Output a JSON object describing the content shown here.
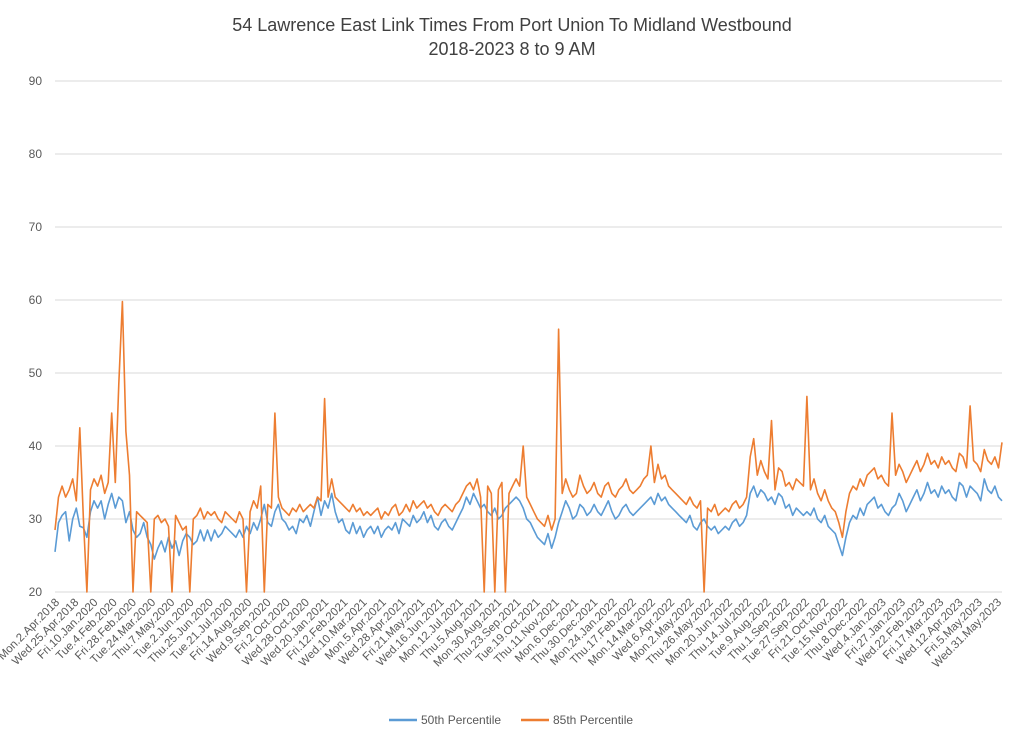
{
  "chart_data": {
    "type": "line",
    "title_line1": "54 Lawrence East Link Times From Port Union To Midland Westbound",
    "title_line2": "2018-2023 8 to 9 AM",
    "xlabel": "",
    "ylabel": "",
    "ylim": [
      20,
      90
    ],
    "yticks": [
      20,
      30,
      40,
      50,
      60,
      70,
      80,
      90
    ],
    "grid": true,
    "legend_position": "bottom",
    "x_tick_labels": [
      "Mon.2.Apr.2018",
      "Wed.25.Apr.2018",
      "Fri.10.Jan.2020",
      "Tue.4.Feb.2020",
      "Fri.28.Feb.2020",
      "Tue.24.Mar.2020",
      "Thu.7.May.2020",
      "Tue.2.Jun.2020",
      "Thu.25.Jun.2020",
      "Tue.21.Jul.2020",
      "Fri.14.Aug.2020",
      "Wed.9.Sep.2020",
      "Fri.2.Oct.2020",
      "Wed.28.Oct.2020",
      "Wed.20.Jan.2021",
      "Fri.12.Feb.2021",
      "Wed.10.Mar.2021",
      "Mon.5.Apr.2021",
      "Wed.28.Apr.2021",
      "Fri.21.May.2021",
      "Wed.16.Jun.2021",
      "Mon.12.Jul.2021",
      "Thu.5.Aug.2021",
      "Mon.30.Aug.2021",
      "Thu.23.Sep.2021",
      "Tue.19.Oct.2021",
      "Thu.11.Nov.2021",
      "Mon.6.Dec.2021",
      "Thu.30.Dec.2021",
      "Mon.24.Jan.2022",
      "Thu.17.Feb.2022",
      "Mon.14.Mar.2022",
      "Wed.6.Apr.2022",
      "Mon.2.May.2022",
      "Thu.26.May.2022",
      "Mon.20.Jun.2022",
      "Thu.14.Jul.2022",
      "Tue.9.Aug.2022",
      "Thu.1.Sep.2022",
      "Tue.27.Sep.2022",
      "Fri.21.Oct.2022",
      "Tue.15.Nov.2022",
      "Thu.8.Dec.2022",
      "Wed.4.Jan.2023",
      "Fri.27.Jan.2023",
      "Wed.22.Feb.2023",
      "Fri.17.Mar.2023",
      "Wed.12.Apr.2023",
      "Fri.5.May.2023",
      "Wed.31.May.2023"
    ],
    "series": [
      {
        "name": "50th Percentile",
        "color": "#5B9BD5",
        "values": [
          25.5,
          29.5,
          30.5,
          31.0,
          27.0,
          30.0,
          31.5,
          29.0,
          28.8,
          27.5,
          31.0,
          32.5,
          31.5,
          32.5,
          30.0,
          32.0,
          33.5,
          31.5,
          33.0,
          32.5,
          29.5,
          31.0,
          28.5,
          27.5,
          28.0,
          29.5,
          27.5,
          26.5,
          24.5,
          26.0,
          27.0,
          25.5,
          27.5,
          26.0,
          27.0,
          25.0,
          27.0,
          28.0,
          27.5,
          26.5,
          27.0,
          28.5,
          27.0,
          28.5,
          27.0,
          28.5,
          27.5,
          28.0,
          29.0,
          28.5,
          28.0,
          27.5,
          28.5,
          27.5,
          29.0,
          28.0,
          29.5,
          28.5,
          30.0,
          32.0,
          29.5,
          29.0,
          31.0,
          32.0,
          30.0,
          29.5,
          28.5,
          29.0,
          28.0,
          30.0,
          29.5,
          30.5,
          29.0,
          31.0,
          33.0,
          30.5,
          32.5,
          31.5,
          33.5,
          31.0,
          29.5,
          30.0,
          28.5,
          28.0,
          29.5,
          28.0,
          29.0,
          27.5,
          28.5,
          29.0,
          28.0,
          29.0,
          27.5,
          28.5,
          29.0,
          28.5,
          29.5,
          28.0,
          30.0,
          29.5,
          29.0,
          30.5,
          29.5,
          30.0,
          31.0,
          29.5,
          30.5,
          29.0,
          28.5,
          29.5,
          30.0,
          29.0,
          28.5,
          29.5,
          30.5,
          31.5,
          33.0,
          32.0,
          33.5,
          32.5,
          31.5,
          32.0,
          31.0,
          30.5,
          31.5,
          30.0,
          30.5,
          31.5,
          32.0,
          32.5,
          33.0,
          32.5,
          31.5,
          30.0,
          29.5,
          28.5,
          27.5,
          27.0,
          26.5,
          28.0,
          26.0,
          27.5,
          29.5,
          31.0,
          32.5,
          31.5,
          30.0,
          30.5,
          32.0,
          31.5,
          30.5,
          31.0,
          32.0,
          31.0,
          30.5,
          31.5,
          32.5,
          31.0,
          30.0,
          30.5,
          31.5,
          32.0,
          31.0,
          30.5,
          31.0,
          31.5,
          32.0,
          32.5,
          33.0,
          32.0,
          33.5,
          32.5,
          33.0,
          32.0,
          31.5,
          31.0,
          30.5,
          30.0,
          29.5,
          30.5,
          29.0,
          28.5,
          29.5,
          30.0,
          29.0,
          28.5,
          29.0,
          28.0,
          28.5,
          29.0,
          28.5,
          29.5,
          30.0,
          29.0,
          29.5,
          30.5,
          33.5,
          34.5,
          33.0,
          34.0,
          33.5,
          32.5,
          33.0,
          32.0,
          33.5,
          33.0,
          31.5,
          32.0,
          30.5,
          31.5,
          31.0,
          30.5,
          31.0,
          30.5,
          31.5,
          30.0,
          29.5,
          30.5,
          29.0,
          28.5,
          28.0,
          26.5,
          25.0,
          27.5,
          29.5,
          30.5,
          30.0,
          31.5,
          30.5,
          32.0,
          32.5,
          33.0,
          31.5,
          32.0,
          31.0,
          30.5,
          31.5,
          32.0,
          33.5,
          32.5,
          31.0,
          32.0,
          33.0,
          34.0,
          32.5,
          33.5,
          35.0,
          33.5,
          34.0,
          33.0,
          34.5,
          33.5,
          34.0,
          33.0,
          32.5,
          35.0,
          34.5,
          33.0,
          34.5,
          34.0,
          33.5,
          32.5,
          35.5,
          34.0,
          33.5,
          34.5,
          33.0,
          32.5
        ]
      },
      {
        "name": "85th Percentile",
        "color": "#ED7D31",
        "values": [
          28.5,
          33.0,
          34.5,
          33.0,
          34.0,
          35.5,
          32.5,
          42.5,
          30.0,
          20.0,
          34.0,
          35.5,
          34.5,
          36.0,
          33.5,
          35.0,
          44.5,
          35.0,
          48.5,
          59.8,
          42.0,
          36.0,
          20.0,
          31.0,
          30.5,
          30.0,
          29.5,
          20.0,
          30.0,
          30.5,
          29.5,
          30.0,
          29.0,
          20.0,
          30.5,
          29.5,
          28.5,
          29.0,
          20.0,
          30.0,
          30.5,
          31.5,
          30.0,
          31.0,
          30.5,
          31.0,
          30.0,
          29.5,
          31.0,
          30.5,
          30.0,
          29.5,
          31.0,
          30.0,
          20.0,
          31.0,
          32.5,
          31.5,
          34.5,
          20.0,
          32.0,
          31.5,
          44.5,
          33.0,
          31.5,
          31.0,
          30.5,
          31.5,
          31.0,
          32.0,
          31.0,
          31.5,
          32.0,
          31.5,
          33.0,
          32.5,
          46.5,
          33.0,
          35.5,
          33.0,
          32.5,
          32.0,
          31.5,
          31.0,
          32.0,
          31.0,
          31.5,
          30.5,
          31.0,
          30.5,
          31.0,
          31.5,
          30.0,
          31.0,
          30.5,
          31.5,
          32.0,
          30.5,
          31.0,
          32.0,
          31.0,
          32.5,
          31.5,
          32.0,
          32.5,
          31.5,
          32.0,
          31.0,
          30.5,
          31.5,
          32.0,
          31.5,
          31.0,
          32.0,
          32.5,
          33.5,
          34.5,
          35.0,
          34.0,
          35.5,
          33.0,
          20.0,
          34.5,
          33.5,
          20.0,
          34.0,
          35.0,
          20.0,
          33.5,
          34.5,
          35.5,
          34.5,
          40.0,
          33.0,
          32.0,
          31.0,
          30.0,
          29.5,
          29.0,
          30.5,
          28.5,
          30.0,
          56.0,
          33.5,
          35.5,
          34.0,
          33.0,
          33.5,
          36.0,
          34.5,
          33.5,
          34.0,
          35.0,
          33.5,
          33.0,
          34.5,
          35.0,
          33.5,
          33.0,
          34.0,
          34.5,
          35.5,
          34.0,
          33.5,
          34.0,
          34.5,
          35.5,
          36.0,
          40.0,
          35.0,
          37.5,
          35.5,
          36.0,
          34.5,
          34.0,
          33.5,
          33.0,
          32.5,
          32.0,
          33.0,
          32.0,
          31.5,
          32.5,
          20.0,
          31.5,
          31.0,
          32.0,
          30.5,
          31.0,
          31.5,
          31.0,
          32.0,
          32.5,
          31.5,
          32.0,
          33.0,
          38.5,
          41.0,
          36.0,
          38.0,
          36.5,
          35.5,
          43.5,
          34.0,
          37.0,
          36.5,
          34.5,
          35.0,
          34.0,
          35.5,
          35.0,
          34.5,
          46.8,
          34.0,
          35.5,
          33.5,
          32.5,
          34.0,
          32.5,
          31.5,
          31.0,
          29.5,
          27.5,
          31.0,
          33.5,
          34.5,
          34.0,
          35.5,
          34.5,
          36.0,
          36.5,
          37.0,
          35.5,
          36.0,
          35.0,
          34.5,
          44.5,
          36.0,
          37.5,
          36.5,
          35.0,
          36.0,
          37.0,
          38.0,
          36.5,
          37.5,
          39.0,
          37.5,
          38.0,
          37.0,
          38.5,
          37.5,
          38.0,
          37.0,
          36.5,
          39.0,
          38.5,
          37.0,
          45.5,
          38.0,
          37.5,
          36.5,
          39.5,
          38.0,
          37.5,
          38.5,
          37.0,
          40.5
        ]
      }
    ]
  }
}
